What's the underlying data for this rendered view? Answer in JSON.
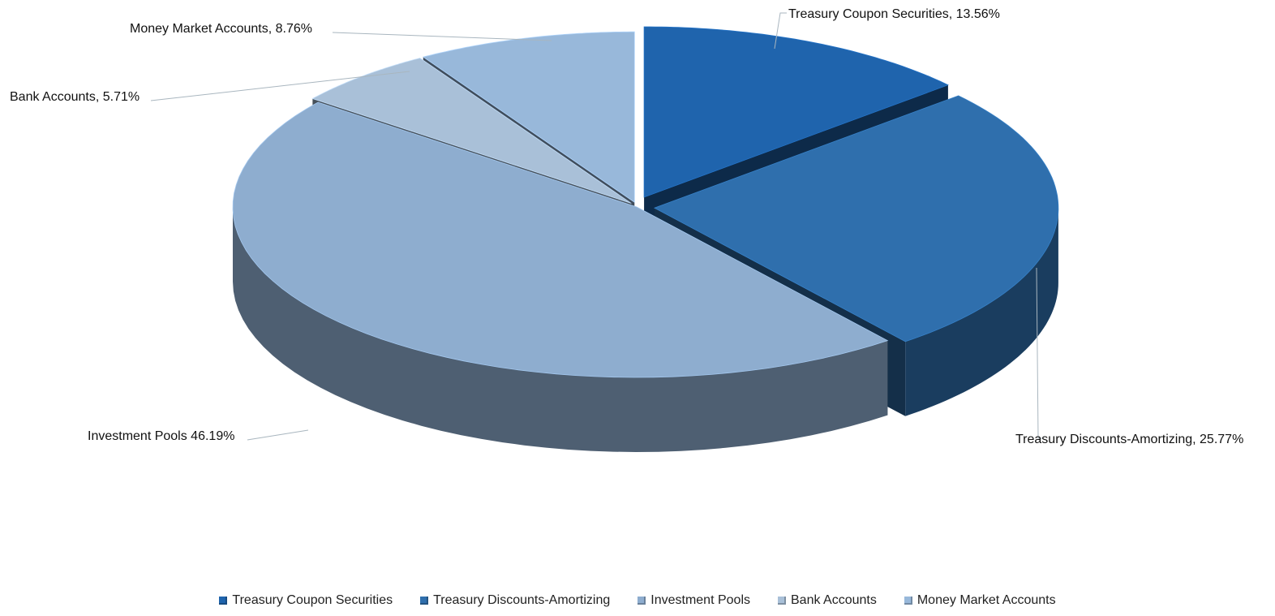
{
  "chart_data": {
    "type": "pie",
    "title": "",
    "categories": [
      "Treasury Coupon Securities",
      "Treasury Discounts-Amortizing",
      "Investment Pools",
      "Bank Accounts",
      "Money Market Accounts"
    ],
    "values": [
      13.56,
      25.77,
      46.19,
      5.71,
      8.76
    ],
    "data_labels": [
      "Treasury Coupon Securities, 13.56%",
      "Treasury Discounts-Amortizing, 25.77%",
      "Investment Pools 46.19%",
      "Bank Accounts, 5.71%",
      "Money Market Accounts, 8.76%"
    ],
    "colors": [
      "#1f64ad",
      "#2f6fad",
      "#8eadcf",
      "#a9c0d8",
      "#98b8da"
    ],
    "legend_position": "bottom",
    "style": "3d-exploded"
  }
}
